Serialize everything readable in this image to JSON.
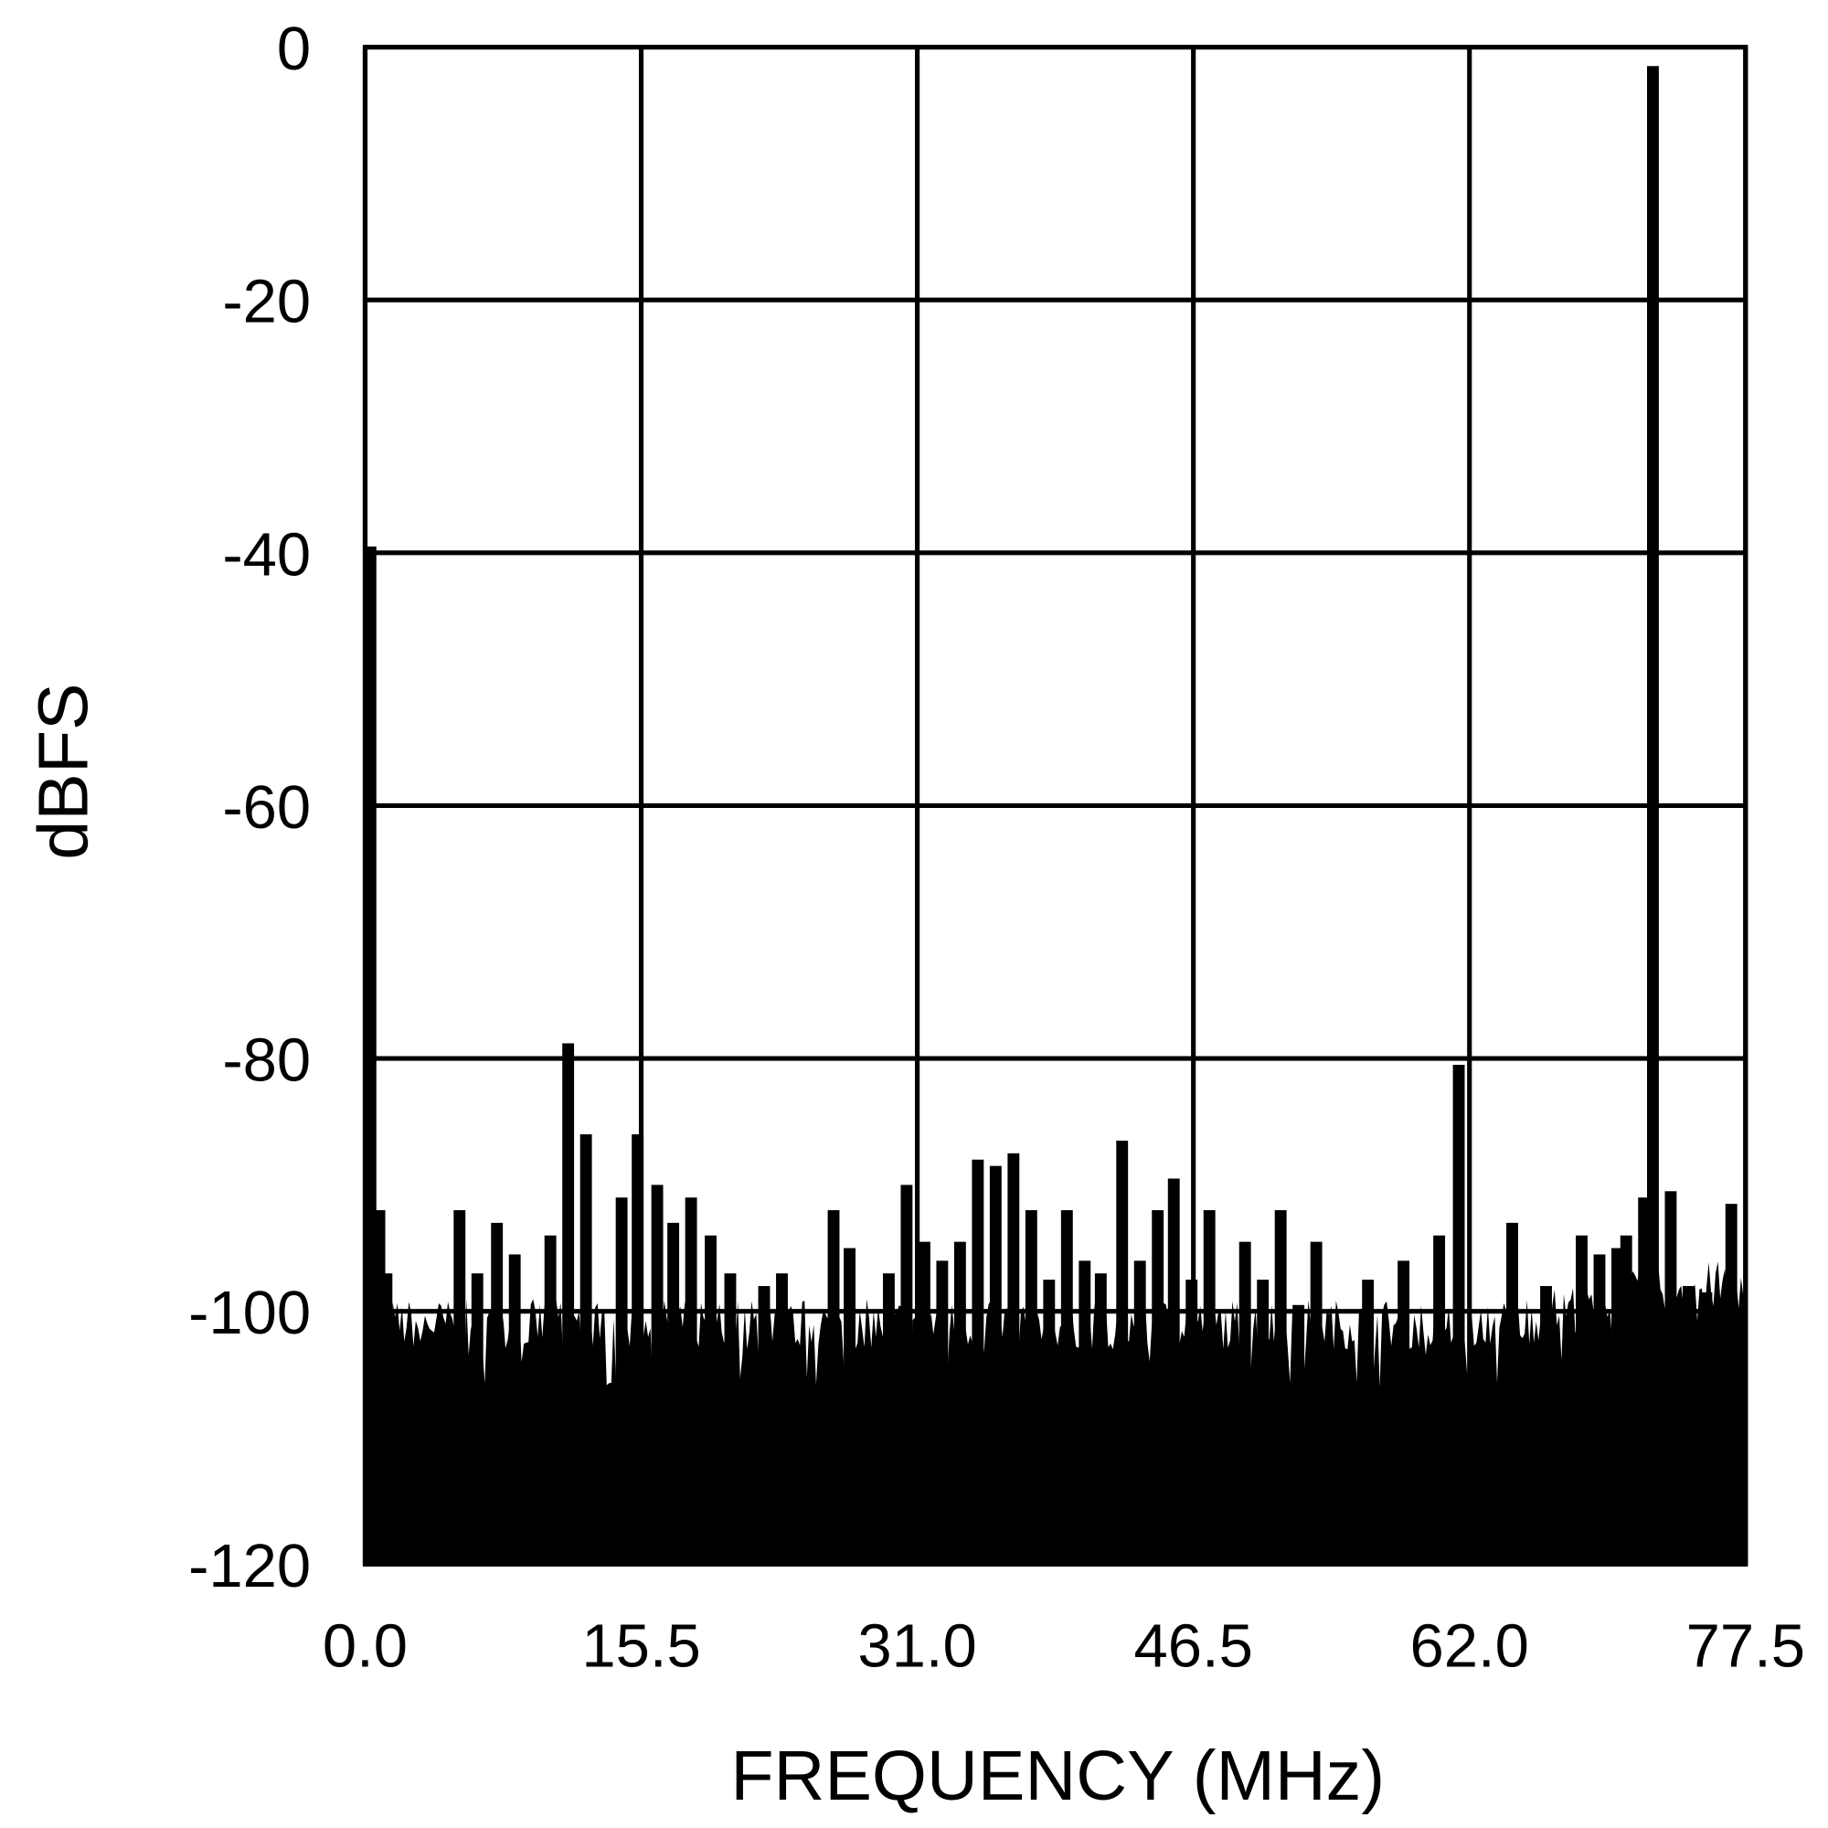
{
  "chart_data": {
    "type": "bar",
    "title": "",
    "xlabel": "FREQUENCY (MHz)",
    "ylabel": "dBFS",
    "xlim": [
      0,
      77.5
    ],
    "ylim": [
      -120,
      0
    ],
    "xticks": [
      "0.0",
      "15.5",
      "31.0",
      "46.5",
      "62.0",
      "77.5"
    ],
    "yticks": [
      "0",
      "-20",
      "-40",
      "-60",
      "-80",
      "-100",
      "-120"
    ],
    "grid": true,
    "noise_floor_dBFS": -101,
    "spurs": [
      {
        "f": 0.3,
        "dBFS": -39.5
      },
      {
        "f": 0.8,
        "dBFS": -92
      },
      {
        "f": 1.2,
        "dBFS": -97
      },
      {
        "f": 5.3,
        "dBFS": -92
      },
      {
        "f": 6.3,
        "dBFS": -97
      },
      {
        "f": 7.4,
        "dBFS": -93
      },
      {
        "f": 8.4,
        "dBFS": -95.5
      },
      {
        "f": 10.4,
        "dBFS": -94
      },
      {
        "f": 11.4,
        "dBFS": -78.8
      },
      {
        "f": 12.4,
        "dBFS": -86
      },
      {
        "f": 14.4,
        "dBFS": -91
      },
      {
        "f": 15.3,
        "dBFS": -86
      },
      {
        "f": 16.4,
        "dBFS": -90
      },
      {
        "f": 17.3,
        "dBFS": -93
      },
      {
        "f": 18.3,
        "dBFS": -91
      },
      {
        "f": 19.4,
        "dBFS": -94
      },
      {
        "f": 20.5,
        "dBFS": -97
      },
      {
        "f": 22.4,
        "dBFS": -98
      },
      {
        "f": 23.4,
        "dBFS": -97
      },
      {
        "f": 26.3,
        "dBFS": -92
      },
      {
        "f": 27.2,
        "dBFS": -95
      },
      {
        "f": 29.4,
        "dBFS": -97
      },
      {
        "f": 30.4,
        "dBFS": -90
      },
      {
        "f": 31.4,
        "dBFS": -94.5
      },
      {
        "f": 32.4,
        "dBFS": -96
      },
      {
        "f": 33.4,
        "dBFS": -94.5
      },
      {
        "f": 34.4,
        "dBFS": -88
      },
      {
        "f": 35.4,
        "dBFS": -88.5
      },
      {
        "f": 36.4,
        "dBFS": -87.5
      },
      {
        "f": 37.4,
        "dBFS": -92
      },
      {
        "f": 38.4,
        "dBFS": -97.5
      },
      {
        "f": 39.4,
        "dBFS": -92
      },
      {
        "f": 40.4,
        "dBFS": -96
      },
      {
        "f": 41.3,
        "dBFS": -97
      },
      {
        "f": 42.5,
        "dBFS": -86.5
      },
      {
        "f": 43.5,
        "dBFS": -96
      },
      {
        "f": 44.5,
        "dBFS": -92
      },
      {
        "f": 45.4,
        "dBFS": -89.5
      },
      {
        "f": 46.4,
        "dBFS": -97.5
      },
      {
        "f": 47.4,
        "dBFS": -92
      },
      {
        "f": 49.4,
        "dBFS": -94.5
      },
      {
        "f": 50.4,
        "dBFS": -97.5
      },
      {
        "f": 51.4,
        "dBFS": -92
      },
      {
        "f": 52.4,
        "dBFS": -99.5
      },
      {
        "f": 53.4,
        "dBFS": -94.5
      },
      {
        "f": 56.3,
        "dBFS": -97.5
      },
      {
        "f": 58.3,
        "dBFS": -96
      },
      {
        "f": 60.3,
        "dBFS": -94
      },
      {
        "f": 61.4,
        "dBFS": -80.5
      },
      {
        "f": 64.4,
        "dBFS": -93
      },
      {
        "f": 66.3,
        "dBFS": -98
      },
      {
        "f": 68.3,
        "dBFS": -94
      },
      {
        "f": 69.3,
        "dBFS": -95.5
      },
      {
        "f": 70.3,
        "dBFS": -95
      },
      {
        "f": 70.8,
        "dBFS": -94
      },
      {
        "f": 71.8,
        "dBFS": -91
      },
      {
        "f": 72.3,
        "dBFS": -1.5
      },
      {
        "f": 73.3,
        "dBFS": -90.5
      },
      {
        "f": 74.3,
        "dBFS": -98
      },
      {
        "f": 75.3,
        "dBFS": -98.5
      },
      {
        "f": 76.7,
        "dBFS": -91.5
      }
    ]
  }
}
